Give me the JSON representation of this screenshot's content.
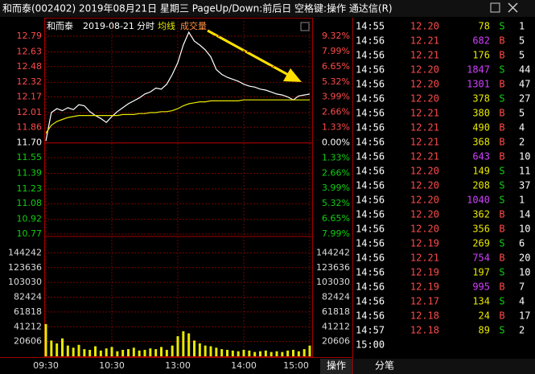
{
  "header": {
    "title": "和而泰(002402) 2019年08月21日 星期三 PageUp/Down:前后日 空格键:操作 通达信(R)"
  },
  "chart_data": {
    "type": "line",
    "title": "和而泰",
    "date": "2019-08-21",
    "subtitle": "分时",
    "x": [
      0,
      5,
      10,
      15,
      20,
      25,
      30,
      35,
      40,
      45,
      50,
      55,
      60,
      65,
      70,
      75,
      80,
      85,
      90,
      95,
      100,
      105,
      110,
      115,
      120,
      125,
      130,
      135,
      140,
      145,
      150,
      155,
      160,
      165,
      170,
      175,
      180,
      185,
      190,
      195,
      200,
      205,
      210,
      215,
      220,
      225,
      230,
      235,
      240
    ],
    "xlim": [
      0,
      240
    ],
    "xticks": [
      {
        "value": 0,
        "label": "09:30"
      },
      {
        "value": 60,
        "label": "10:30"
      },
      {
        "value": 120,
        "label": "13:00"
      },
      {
        "value": 180,
        "label": "14:00"
      },
      {
        "value": 240,
        "label": "15:00"
      }
    ],
    "series": [
      {
        "color": "#ffffff",
        "values": [
          11.72,
          12.01,
          12.05,
          12.03,
          12.06,
          12.04,
          12.09,
          12.08,
          12.02,
          11.98,
          11.95,
          11.91,
          11.97,
          12.02,
          12.06,
          12.1,
          12.13,
          12.16,
          12.2,
          12.22,
          12.26,
          12.25,
          12.3,
          12.4,
          12.52,
          12.7,
          12.83,
          12.74,
          12.7,
          12.65,
          12.58,
          12.45,
          12.4,
          12.37,
          12.35,
          12.33,
          12.3,
          12.28,
          12.27,
          12.25,
          12.24,
          12.22,
          12.2,
          12.19,
          12.17,
          12.14,
          12.18,
          12.19,
          12.2
        ]
      },
      {
        "name": "均线",
        "color": "#e8e800",
        "values": [
          11.8,
          11.88,
          11.92,
          11.94,
          11.96,
          11.97,
          11.98,
          11.98,
          11.98,
          11.98,
          11.98,
          11.98,
          11.98,
          11.98,
          11.99,
          11.99,
          11.99,
          12.0,
          12.0,
          12.01,
          12.01,
          12.02,
          12.02,
          12.03,
          12.05,
          12.08,
          12.1,
          12.11,
          12.12,
          12.12,
          12.13,
          12.13,
          12.13,
          12.13,
          12.13,
          12.13,
          12.14,
          12.14,
          12.14,
          12.14,
          12.14,
          12.14,
          12.14,
          12.14,
          12.14,
          12.14,
          12.14,
          12.14,
          12.14
        ]
      }
    ],
    "ylim": [
      10.77,
      12.79
    ],
    "yticks": [
      12.79,
      12.63,
      12.48,
      12.32,
      12.17,
      12.01,
      11.86,
      {
        "value": 11.7,
        "label": "11.70"
      },
      11.55,
      11.39,
      11.23,
      11.08,
      10.92,
      10.77
    ],
    "y2lim": [
      -7.99,
      9.32
    ],
    "y2ticks": [
      {
        "value": 9.32,
        "label": "9.32%"
      },
      {
        "value": 7.99,
        "label": "7.99%"
      },
      {
        "value": 6.65,
        "label": "6.65%"
      },
      {
        "value": 5.32,
        "label": "5.32%"
      },
      {
        "value": 3.99,
        "label": "3.99%"
      },
      {
        "value": 2.66,
        "label": "2.66%"
      },
      {
        "value": 1.33,
        "label": "1.33%"
      },
      {
        "value": 0,
        "label": "0.00%"
      },
      {
        "value": -1.33,
        "label": "1.33%"
      },
      {
        "value": -2.66,
        "label": "2.66%"
      },
      {
        "value": -3.99,
        "label": "3.99%"
      },
      {
        "value": -5.32,
        "label": "5.32%"
      },
      {
        "value": -6.65,
        "label": "6.65%"
      },
      {
        "value": -7.99,
        "label": "7.99%"
      }
    ],
    "volume": {
      "name": "成交量",
      "color": "#e8e800",
      "values": [
        45000,
        22000,
        18000,
        25000,
        15000,
        12000,
        16000,
        10000,
        9000,
        14000,
        8000,
        11000,
        13000,
        7000,
        9000,
        10000,
        12000,
        8000,
        9000,
        11000,
        10000,
        13000,
        9000,
        15000,
        28000,
        35000,
        32000,
        22000,
        18000,
        15000,
        14000,
        12000,
        10000,
        9000,
        8000,
        7000,
        9000,
        8000,
        6000,
        7000,
        8000,
        6000,
        7000,
        6000,
        8000,
        9000,
        7000,
        10000,
        15000
      ],
      "ylim": [
        0,
        164848
      ],
      "yticks": [
        144242,
        123636,
        103030,
        82424,
        61818,
        41212,
        20606
      ]
    },
    "grid": true
  },
  "ticks_table": {
    "rows": [
      [
        "14:55",
        "12.20",
        "78",
        "S",
        "1"
      ],
      [
        "14:56",
        "12.21",
        "682",
        "B",
        "5"
      ],
      [
        "14:56",
        "12.21",
        "176",
        "B",
        "5"
      ],
      [
        "14:56",
        "12.20",
        "1847",
        "S",
        "44"
      ],
      [
        "14:56",
        "12.20",
        "1301",
        "B",
        "47"
      ],
      [
        "14:56",
        "12.20",
        "378",
        "S",
        "27"
      ],
      [
        "14:56",
        "12.21",
        "380",
        "B",
        "5"
      ],
      [
        "14:56",
        "12.21",
        "490",
        "B",
        "4"
      ],
      [
        "14:56",
        "12.21",
        "368",
        "B",
        "2"
      ],
      [
        "14:56",
        "12.21",
        "643",
        "B",
        "10"
      ],
      [
        "14:56",
        "12.20",
        "149",
        "S",
        "11"
      ],
      [
        "14:56",
        "12.20",
        "208",
        "S",
        "37"
      ],
      [
        "14:56",
        "12.20",
        "1040",
        "S",
        "1"
      ],
      [
        "14:56",
        "12.20",
        "362",
        "B",
        "14"
      ],
      [
        "14:56",
        "12.20",
        "356",
        "B",
        "10"
      ],
      [
        "14:56",
        "12.19",
        "269",
        "S",
        "6"
      ],
      [
        "14:56",
        "12.21",
        "754",
        "B",
        "20"
      ],
      [
        "14:56",
        "12.19",
        "197",
        "S",
        "10"
      ],
      [
        "14:56",
        "12.19",
        "995",
        "B",
        "7"
      ],
      [
        "14:56",
        "12.17",
        "134",
        "S",
        "4"
      ],
      [
        "14:56",
        "12.18",
        "24",
        "B",
        "17"
      ],
      [
        "14:57",
        "12.18",
        "89",
        "S",
        "2"
      ],
      [
        "15:00"
      ]
    ]
  },
  "footer": {
    "tabs": [
      "操作",
      "分笔"
    ]
  }
}
